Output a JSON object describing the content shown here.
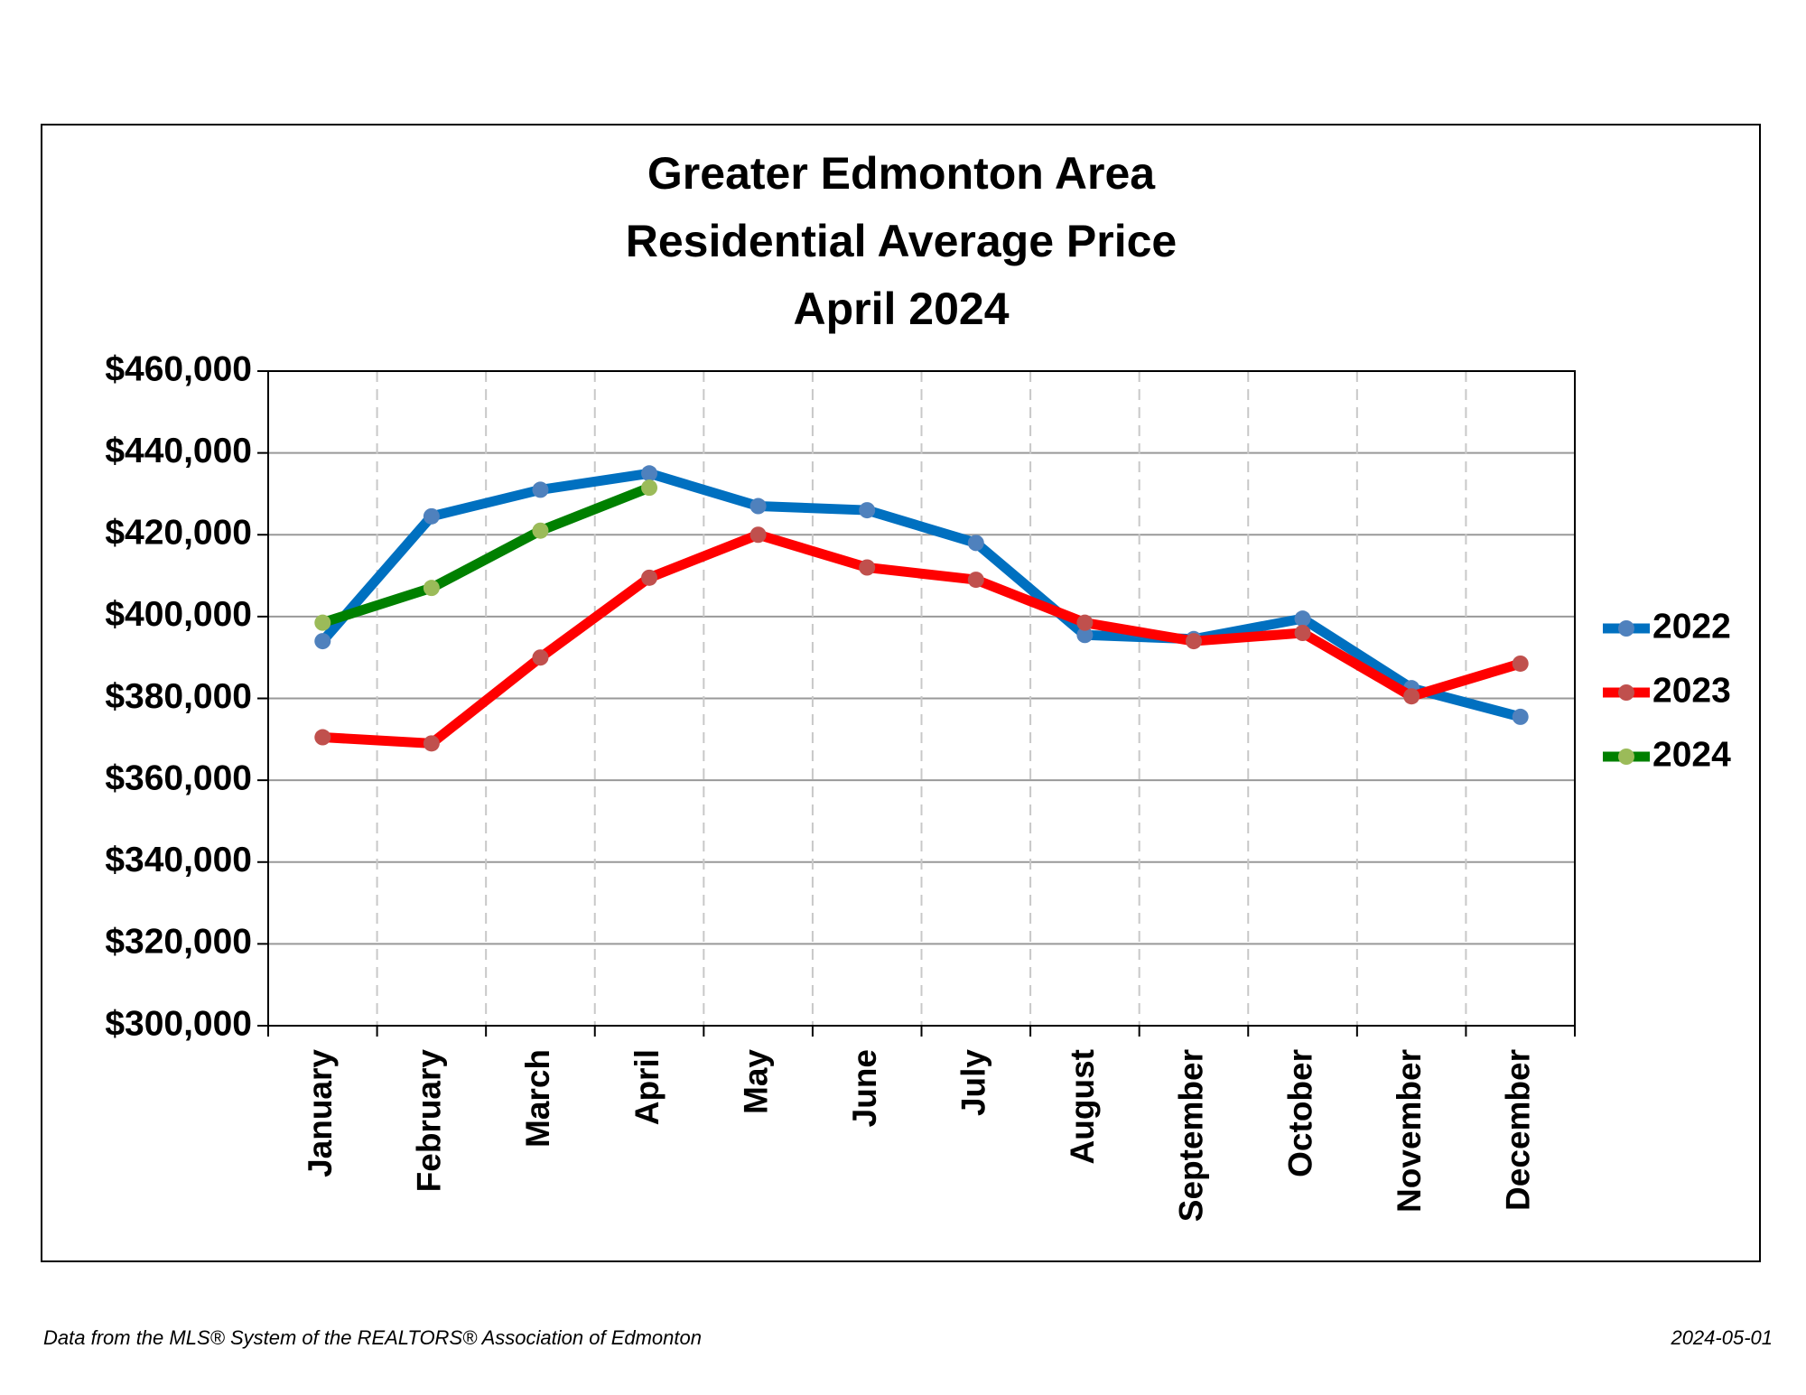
{
  "chart_data": {
    "type": "line",
    "title": [
      "Greater Edmonton Area",
      "Residential Average Price",
      "April 2024"
    ],
    "categories": [
      "January",
      "February",
      "March",
      "April",
      "May",
      "June",
      "July",
      "August",
      "September",
      "October",
      "November",
      "December"
    ],
    "series": [
      {
        "name": "2022",
        "color": "#0070c0",
        "marker_color": "#4f81bd",
        "values": [
          394000,
          424500,
          431000,
          435000,
          427000,
          426000,
          418000,
          395500,
          394500,
          399500,
          382500,
          375500
        ]
      },
      {
        "name": "2023",
        "color": "#ff0000",
        "marker_color": "#c0504d",
        "values": [
          370500,
          369000,
          390000,
          409500,
          420000,
          412000,
          409000,
          398500,
          394000,
          396000,
          380500,
          388500
        ]
      },
      {
        "name": "2024",
        "color": "#008000",
        "marker_color": "#9bbb59",
        "values": [
          398500,
          407000,
          421000,
          431500,
          null,
          null,
          null,
          null,
          null,
          null,
          null,
          null
        ]
      }
    ],
    "ylim": [
      300000,
      460000
    ],
    "yticks": [
      {
        "value": 300000,
        "label": "$300,000"
      },
      {
        "value": 320000,
        "label": "$320,000"
      },
      {
        "value": 340000,
        "label": "$340,000"
      },
      {
        "value": 360000,
        "label": "$360,000"
      },
      {
        "value": 380000,
        "label": "$380,000"
      },
      {
        "value": 400000,
        "label": "$400,000"
      },
      {
        "value": 420000,
        "label": "$420,000"
      },
      {
        "value": 440000,
        "label": "$440,000"
      },
      {
        "value": 460000,
        "label": "$460,000"
      }
    ],
    "grid": true,
    "legend": "right",
    "footer_left": "Data from the MLS® System of the REALTORS® Association of Edmonton",
    "footer_right": "2024-05-01"
  }
}
